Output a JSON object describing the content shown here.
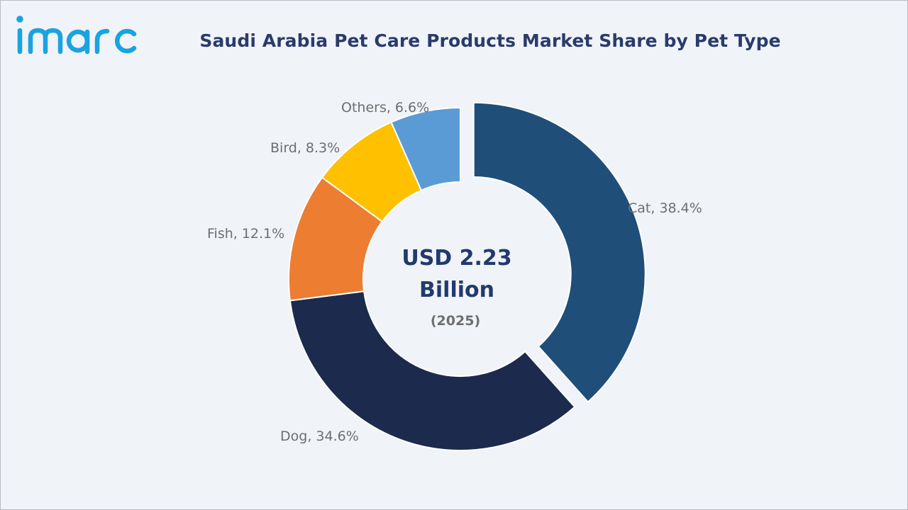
{
  "brand": {
    "name": "imarc",
    "color": "#1aa3e0"
  },
  "chart_data": {
    "type": "pie",
    "title": "Saudi Arabia Pet Care Products Market Share by Pet Type",
    "center_label": {
      "value_line1": "USD 2.23",
      "value_line2": "Billion",
      "year": "(2025)"
    },
    "categories": [
      "Cat",
      "Dog",
      "Fish",
      "Bird",
      "Others"
    ],
    "values": [
      38.4,
      34.6,
      12.1,
      8.3,
      6.6
    ],
    "unit": "%",
    "labels": [
      "Cat, 38.4%",
      "Dog, 34.6%",
      "Fish, 12.1%",
      "Bird, 8.3%",
      "Others, 6.6%"
    ],
    "colors": [
      "#1f4e79",
      "#1c2a4d",
      "#ed7d31",
      "#ffc000",
      "#5b9bd5"
    ],
    "exploded": [
      "Cat"
    ],
    "donut": true,
    "start": "12 o'clock",
    "direction": "clockwise",
    "legend": "none (data labels beside slices)"
  }
}
